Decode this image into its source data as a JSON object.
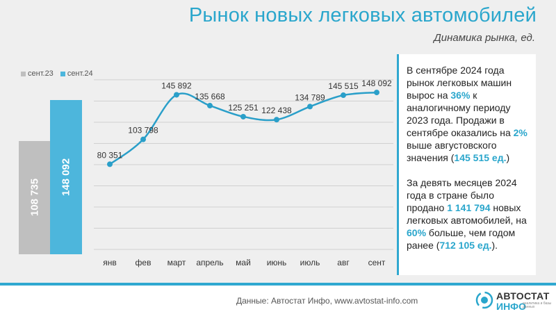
{
  "header": {
    "title": "Рынок новых легковых автомобилей",
    "subtitle": "Динамика рынка, ед."
  },
  "chart_data": [
    {
      "type": "bar",
      "categories": [
        "сент.23",
        "сент.24"
      ],
      "values": [
        108735,
        148092
      ],
      "value_labels": [
        "108 735",
        "148 092"
      ],
      "colors": [
        "#bfbfbf",
        "#4db6dc"
      ],
      "legend_position": "top-left",
      "ylim": [
        0,
        148092
      ]
    },
    {
      "type": "line",
      "x": [
        "янв",
        "фев",
        "март",
        "апрель",
        "май",
        "июнь",
        "июль",
        "авг",
        "сент"
      ],
      "values": [
        80351,
        103798,
        145892,
        135668,
        125251,
        122438,
        134789,
        145515,
        148092
      ],
      "value_labels": [
        "80 351",
        "103 798",
        "145 892",
        "135 668",
        "125 251",
        "122 438",
        "134 789",
        "145 515",
        "148 092"
      ],
      "color": "#2a9fc9",
      "smooth": true,
      "grid": true,
      "ylim": [
        0,
        160000
      ]
    }
  ],
  "panel": {
    "p1": [
      {
        "t": "В сентябре 2024 года рынок легковых машин вырос на ",
        "hl": false
      },
      {
        "t": "36%",
        "hl": true
      },
      {
        "t": " к аналогичному периоду 2023 года. Продажи в сентябре оказались на ",
        "hl": false
      },
      {
        "t": "2%",
        "hl": true
      },
      {
        "t": " выше августовского значения (",
        "hl": false
      },
      {
        "t": "145 515 ед.",
        "hl": true
      },
      {
        "t": ")",
        "hl": false
      }
    ],
    "p2": [
      {
        "t": "За девять месяцев 2024 года в стране было продано ",
        "hl": false
      },
      {
        "t": "1 141 794",
        "hl": true
      },
      {
        "t": " новых легковых автомобилей, на ",
        "hl": false
      },
      {
        "t": "60%",
        "hl": true
      },
      {
        "t": " больше, чем годом ранее (",
        "hl": false
      },
      {
        "t": "712 105 ед.",
        "hl": true
      },
      {
        "t": ").",
        "hl": false
      }
    ]
  },
  "footer": {
    "source": "Данные: Автостат Инфо, www.avtostat-info.com",
    "logo_line1": "АВТОСТАТ",
    "logo_line2": "ИНФО",
    "logo_small": "аналитика и базы данных"
  }
}
